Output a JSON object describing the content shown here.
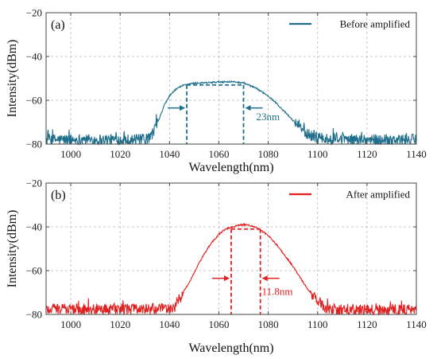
{
  "chart_data": [
    {
      "type": "line",
      "panel_label": "(a)",
      "xlabel": "Wavelength(nm)",
      "ylabel": "Intensity(dBm)",
      "xlim": [
        990,
        1140
      ],
      "ylim": [
        -80,
        -20
      ],
      "xticks": [
        1000,
        1020,
        1040,
        1060,
        1080,
        1100,
        1120,
        1140
      ],
      "xtick_labels": [
        "1000",
        "1020",
        "1040",
        "1060",
        "1080",
        "1100",
        "1120",
        "1140"
      ],
      "yticks": [
        -80,
        -60,
        -40,
        -20
      ],
      "ytick_labels": [
        "−80",
        "−60",
        "−40",
        "−20"
      ],
      "grid": true,
      "legend_position": "top-right",
      "series": [
        {
          "name": "Before amplified",
          "color": "#1f6e8c",
          "x": [
            990,
            1000,
            1010,
            1020,
            1030,
            1032,
            1034,
            1036,
            1038,
            1040,
            1042,
            1044,
            1046,
            1048,
            1050,
            1055,
            1060,
            1065,
            1070,
            1072,
            1075,
            1078,
            1080,
            1083,
            1086,
            1089,
            1092,
            1095,
            1098,
            1101,
            1104,
            1110,
            1120,
            1130,
            1140
          ],
          "y": [
            -78,
            -78,
            -78,
            -78,
            -78,
            -77.5,
            -73,
            -68,
            -62,
            -58,
            -55.5,
            -54,
            -53,
            -52.5,
            -52.2,
            -52,
            -51.6,
            -51.5,
            -52,
            -53,
            -54.5,
            -56.5,
            -58,
            -61,
            -64.5,
            -68,
            -71.5,
            -74.5,
            -76.5,
            -77.5,
            -78,
            -78,
            -78,
            -78,
            -78
          ]
        }
      ],
      "annotations": [
        {
          "type": "bandwidth",
          "x_start": 1047,
          "x_end": 1070,
          "y_level": -53,
          "label": "23nm"
        }
      ]
    },
    {
      "type": "line",
      "panel_label": "(b)",
      "xlabel": "Wavelength(nm)",
      "ylabel": "Intensity(dBm)",
      "xlim": [
        990,
        1140
      ],
      "ylim": [
        -80,
        -20
      ],
      "xticks": [
        1000,
        1020,
        1040,
        1060,
        1080,
        1100,
        1120,
        1140
      ],
      "xtick_labels": [
        "1000",
        "1020",
        "1040",
        "1060",
        "1080",
        "1100",
        "1120",
        "1140"
      ],
      "yticks": [
        -80,
        -60,
        -40,
        -20
      ],
      "ytick_labels": [
        "−80",
        "−60",
        "−40",
        "−20"
      ],
      "grid": true,
      "legend_position": "top-right",
      "series": [
        {
          "name": "After amplified",
          "color": "#e02020",
          "x": [
            990,
            1000,
            1010,
            1020,
            1030,
            1040,
            1042,
            1044,
            1046,
            1048,
            1050,
            1052,
            1054,
            1056,
            1058,
            1060,
            1062,
            1064,
            1066,
            1068,
            1070,
            1072,
            1074,
            1076,
            1078,
            1080,
            1082,
            1084,
            1086,
            1088,
            1090,
            1092,
            1094,
            1096,
            1098,
            1100,
            1102,
            1104,
            1106,
            1110,
            1120,
            1130,
            1140
          ],
          "y": [
            -77.5,
            -77.5,
            -77.5,
            -77.5,
            -77.5,
            -77.5,
            -76.5,
            -73,
            -69,
            -65.5,
            -61,
            -56.5,
            -52.5,
            -49,
            -46,
            -43.5,
            -41.5,
            -40.5,
            -40,
            -39.3,
            -39,
            -39.2,
            -39.8,
            -40.8,
            -42.3,
            -44,
            -46.3,
            -49,
            -52,
            -55,
            -58,
            -61.5,
            -65,
            -68.5,
            -71.5,
            -74,
            -76,
            -77.3,
            -78,
            -78,
            -78,
            -78,
            -78
          ]
        }
      ],
      "annotations": [
        {
          "type": "bandwidth",
          "x_start": 1065,
          "x_end": 1076.8,
          "y_level": -41,
          "label": "11.8nm"
        }
      ]
    }
  ]
}
